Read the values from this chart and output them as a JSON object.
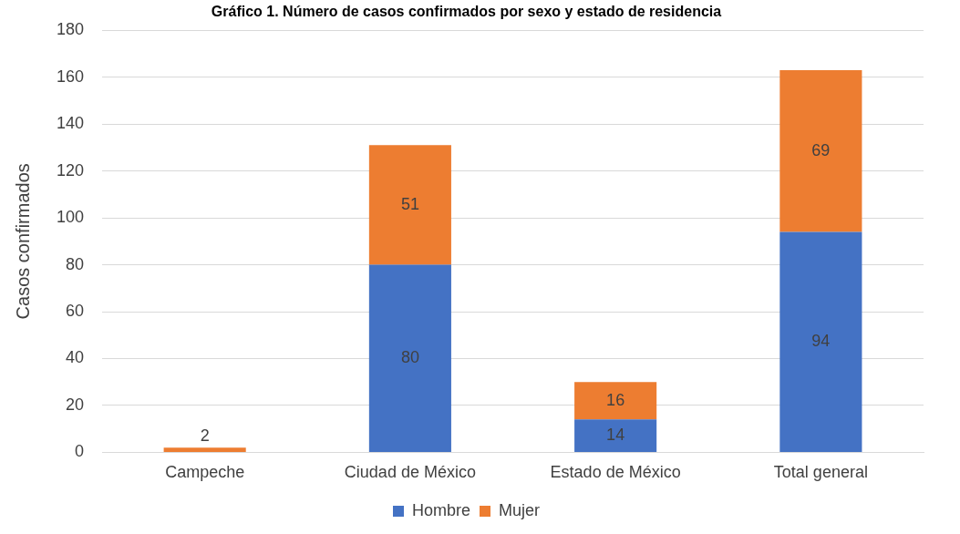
{
  "chart_data": {
    "type": "bar",
    "stacked": true,
    "title": "Gráfico 1. Número de casos confirmados por sexo y estado de residencia",
    "ylabel": "Casos confirmados",
    "categories": [
      "Campeche",
      "Ciudad de México",
      "Estado de México",
      "Total general"
    ],
    "series": [
      {
        "name": "Hombre",
        "color": "#4472c4",
        "values": [
          null,
          80,
          14,
          94
        ]
      },
      {
        "name": "Mujer",
        "color": "#ed7d31",
        "values": [
          2,
          51,
          16,
          69
        ]
      }
    ],
    "ylim": [
      0,
      180
    ],
    "yticks": [
      0,
      20,
      40,
      60,
      80,
      100,
      120,
      140,
      160,
      180
    ],
    "grid": "y",
    "legend": "bottom",
    "data_labels": true
  }
}
